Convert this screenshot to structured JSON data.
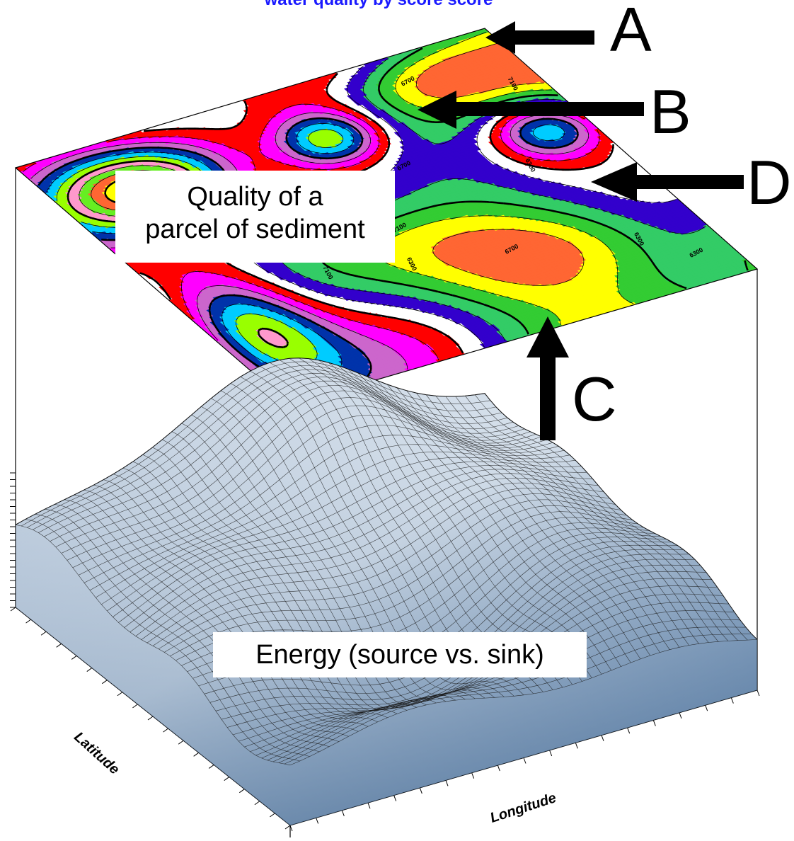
{
  "title_fragment": "water quality by score score",
  "labels": {
    "quality_box_line1": "Quality of a",
    "quality_box_line2": "parcel of sediment",
    "energy_box": "Energy (source vs. sink)",
    "latitude_axis": "Latitude",
    "longitude_axis": "Longitude"
  },
  "callouts": {
    "a": "A",
    "b": "B",
    "c": "C",
    "d": "D"
  },
  "contour_labels": [
    "7100",
    "6700",
    "6300",
    "7100",
    "7100",
    "6700",
    "6300",
    "6300",
    "7100",
    "6700",
    "6300",
    "7100"
  ],
  "colors": {
    "band_palette": [
      "#ff6633",
      "#ffff00",
      "#33cc33",
      "#33cc66",
      "#3300cc",
      "#ffffff",
      "#ff0000",
      "#ff00ff",
      "#cc66cc",
      "#0033aa",
      "#00ccff",
      "#99ff00",
      "#ff99cc",
      "#66ee22"
    ],
    "surface_light": "#e8eef5",
    "surface_dark": "#5c7ea6",
    "grid_line": "#1a1a1a",
    "arrow": "#000000",
    "title_text": "#1a1aff"
  }
}
